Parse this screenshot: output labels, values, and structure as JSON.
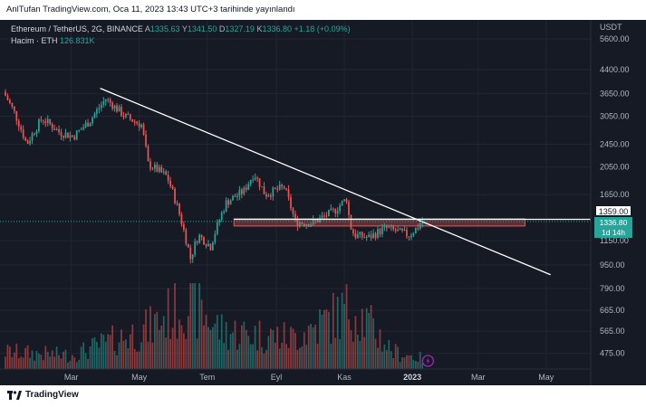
{
  "header": {
    "publish_text": "AnlTufan TradingView.com, Oca 11, 2023 13:43 UTC+3 tarihinde yayınlandı"
  },
  "legend": {
    "symbol": "Ethereum / TetherUS, 2G, BINANCE",
    "o_key": "A",
    "o_val": "1335.63",
    "h_key": "Y",
    "h_val": "1341.50",
    "l_key": "D",
    "l_val": "1327.19",
    "c_key": "K",
    "c_val": "1336.80",
    "change": "+1.18 (+0.09%)",
    "volume_label": "Hacim · ETH",
    "volume_value": "126.831K"
  },
  "axis": {
    "currency": "USDT",
    "price_labels": [
      "5600.00",
      "4400.00",
      "3650.00",
      "3050.00",
      "2450.00",
      "2050.00",
      "1650.00",
      "1150.00",
      "950.00",
      "790.00",
      "665.00",
      "565.00",
      "475.00"
    ],
    "time_labels": [
      "Mar",
      "May",
      "Tem",
      "Eyl",
      "Kas",
      "2023",
      "Mar",
      "May"
    ]
  },
  "tags": {
    "resistance_value": "1359.00",
    "last_price": "1336.80",
    "countdown": "1d 14h"
  },
  "footer": {
    "brand": "TradingView"
  },
  "colors": {
    "up": "#26a69a",
    "down": "#ef5350",
    "background": "#161a25",
    "grid": "#232632",
    "axis_text": "#b2b5be"
  },
  "chart_data": {
    "type": "candlestick",
    "title": "Ethereum / TetherUS, 2G, BINANCE",
    "y_scale": "log",
    "ylim": [
      420,
      6500
    ],
    "x_range": [
      "2022-01-01",
      "2023-06-10"
    ],
    "candle_interval_days": 2,
    "price_path": [
      [
        "2022-01-01",
        3700
      ],
      [
        "2022-01-10",
        3200
      ],
      [
        "2022-01-22",
        2450
      ],
      [
        "2022-02-05",
        3000
      ],
      [
        "2022-02-20",
        2700
      ],
      [
        "2022-03-05",
        2600
      ],
      [
        "2022-03-20",
        2950
      ],
      [
        "2022-04-03",
        3500
      ],
      [
        "2022-04-20",
        3050
      ],
      [
        "2022-05-05",
        2850
      ],
      [
        "2022-05-11",
        2100
      ],
      [
        "2022-05-28",
        1900
      ],
      [
        "2022-06-13",
        1200
      ],
      [
        "2022-06-18",
        1000
      ],
      [
        "2022-06-25",
        1200
      ],
      [
        "2022-07-06",
        1100
      ],
      [
        "2022-07-20",
        1550
      ],
      [
        "2022-08-05",
        1700
      ],
      [
        "2022-08-14",
        1950
      ],
      [
        "2022-08-24",
        1650
      ],
      [
        "2022-09-10",
        1750
      ],
      [
        "2022-09-20",
        1330
      ],
      [
        "2022-10-05",
        1320
      ],
      [
        "2022-10-25",
        1450
      ],
      [
        "2022-11-05",
        1600
      ],
      [
        "2022-11-08",
        1300
      ],
      [
        "2022-11-12",
        1200
      ],
      [
        "2022-11-25",
        1180
      ],
      [
        "2022-12-10",
        1270
      ],
      [
        "2022-12-31",
        1200
      ],
      [
        "2023-01-08",
        1280
      ],
      [
        "2023-01-11",
        1337
      ]
    ],
    "volume_path": [
      [
        "2022-01-01",
        0.25
      ],
      [
        "2022-03-01",
        0.2
      ],
      [
        "2022-05-11",
        0.6
      ],
      [
        "2022-06-13",
        1.0
      ],
      [
        "2022-07-15",
        0.55
      ],
      [
        "2022-09-15",
        0.45
      ],
      [
        "2022-11-09",
        0.9
      ],
      [
        "2022-12-15",
        0.25
      ],
      [
        "2023-01-11",
        0.15
      ]
    ],
    "trendline": {
      "start": [
        "2022-03-27",
        3800
      ],
      "end": [
        "2023-05-05",
        880
      ]
    },
    "horizontal_line": {
      "from": "2022-07-25",
      "value": 1359
    },
    "zone": {
      "from": "2022-07-25",
      "to": "2023-04-12",
      "low": 1290,
      "high": 1365
    },
    "grid": true
  }
}
